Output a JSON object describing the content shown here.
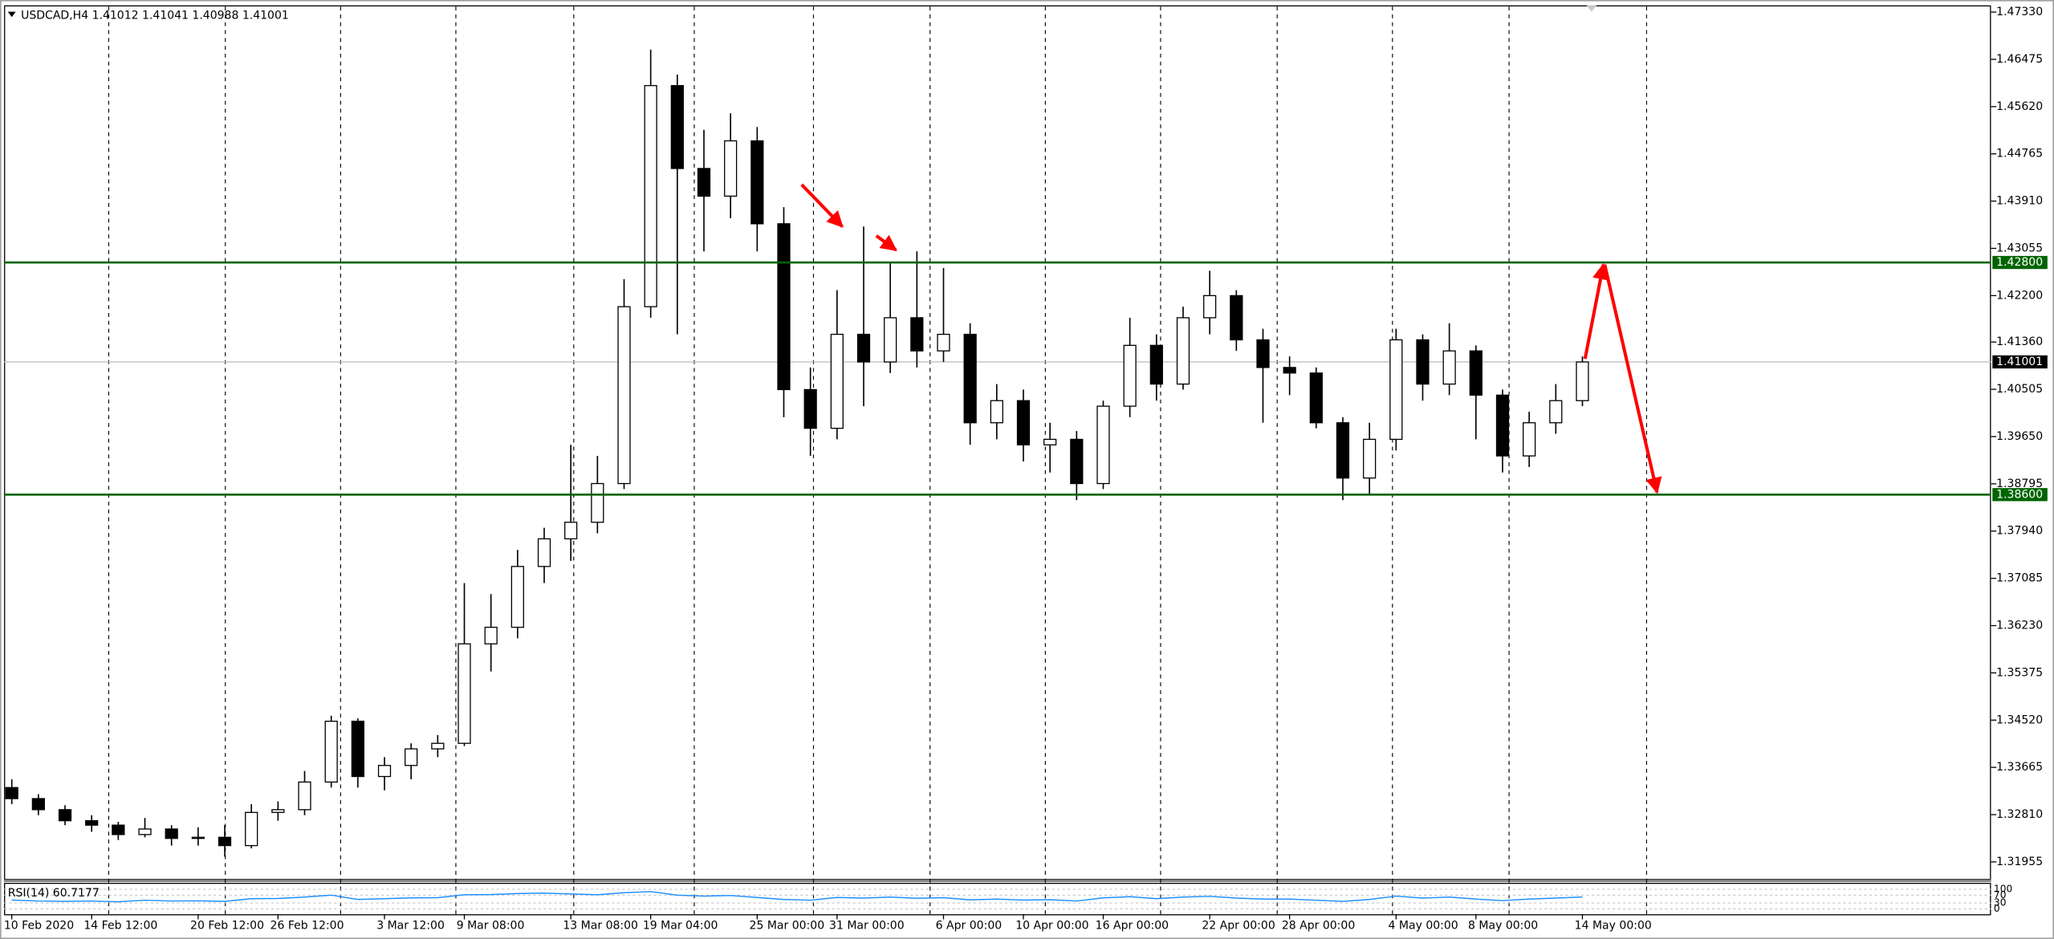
{
  "chart_data": [
    {
      "type": "candlestick",
      "title": "USDCAD,H4  1.41012 1.41041 1.40988 1.41001",
      "categories": [
        "10 Feb 2020",
        null,
        null,
        "14 Feb 12:00",
        null,
        null,
        null,
        "20 Feb 12:00",
        null,
        null,
        "26 Feb 12:00",
        null,
        null,
        null,
        "3 Mar 12:00",
        null,
        null,
        "9 Mar 08:00",
        null,
        null,
        null,
        "13 Mar 08:00",
        null,
        null,
        "19 Mar 04:00",
        null,
        null,
        null,
        "25 Mar 00:00",
        null,
        null,
        "31 Mar 00:00",
        null,
        null,
        null,
        "6 Apr 00:00",
        null,
        null,
        "10 Apr 00:00",
        null,
        null,
        "16 Apr 00:00",
        null,
        null,
        null,
        "22 Apr 00:00",
        null,
        null,
        "28 Apr 00:00",
        null,
        null,
        null,
        "4 May 00:00",
        null,
        null,
        "8 May 00:00",
        null,
        null,
        null,
        "14 May 00:00"
      ],
      "open": [
        1.333,
        1.331,
        1.329,
        1.327,
        1.3262,
        1.3245,
        1.3255,
        1.3238,
        1.324,
        1.3225,
        1.3285,
        1.329,
        1.334,
        1.345,
        1.335,
        1.337,
        1.34,
        1.341,
        1.359,
        1.362,
        1.373,
        1.378,
        1.381,
        1.388,
        1.42,
        1.46,
        1.445,
        1.44,
        1.45,
        1.435,
        1.405,
        1.398,
        1.415,
        1.41,
        1.418,
        1.412,
        1.415,
        1.399,
        1.403,
        1.395,
        1.396,
        1.388,
        1.402,
        1.413,
        1.406,
        1.418,
        1.422,
        1.414,
        1.409,
        1.408,
        1.399,
        1.389,
        1.396,
        1.414,
        1.406,
        1.412,
        1.404,
        1.393,
        1.399,
        1.403
      ],
      "high": [
        1.3345,
        1.3318,
        1.3298,
        1.328,
        1.3268,
        1.3275,
        1.3262,
        1.3258,
        1.3262,
        1.33,
        1.3305,
        1.336,
        1.346,
        1.3455,
        1.3385,
        1.341,
        1.3425,
        1.37,
        1.368,
        1.376,
        1.38,
        1.395,
        1.393,
        1.425,
        1.4665,
        1.462,
        1.452,
        1.455,
        1.4525,
        1.438,
        1.409,
        1.423,
        1.4345,
        1.428,
        1.43,
        1.427,
        1.417,
        1.406,
        1.405,
        1.399,
        1.3975,
        1.403,
        1.418,
        1.415,
        1.42,
        1.4265,
        1.423,
        1.416,
        1.411,
        1.409,
        1.4,
        1.399,
        1.416,
        1.415,
        1.417,
        1.413,
        1.405,
        1.401,
        1.406,
        1.411
      ],
      "low": [
        1.33,
        1.328,
        1.3262,
        1.325,
        1.3235,
        1.324,
        1.3225,
        1.3225,
        1.3205,
        1.322,
        1.327,
        1.328,
        1.333,
        1.333,
        1.3325,
        1.3345,
        1.3385,
        1.3405,
        1.354,
        1.36,
        1.37,
        1.374,
        1.379,
        1.387,
        1.418,
        1.415,
        1.43,
        1.436,
        1.43,
        1.4,
        1.393,
        1.396,
        1.402,
        1.408,
        1.409,
        1.41,
        1.395,
        1.396,
        1.392,
        1.39,
        1.385,
        1.387,
        1.4,
        1.403,
        1.405,
        1.415,
        1.412,
        1.399,
        1.404,
        1.398,
        1.385,
        1.386,
        1.394,
        1.403,
        1.404,
        1.396,
        1.39,
        1.391,
        1.397,
        1.402
      ],
      "close": [
        1.331,
        1.329,
        1.327,
        1.3262,
        1.3245,
        1.3255,
        1.3238,
        1.324,
        1.3225,
        1.3285,
        1.329,
        1.334,
        1.345,
        1.335,
        1.337,
        1.34,
        1.341,
        1.359,
        1.362,
        1.373,
        1.378,
        1.381,
        1.388,
        1.42,
        1.46,
        1.445,
        1.44,
        1.45,
        1.435,
        1.405,
        1.398,
        1.415,
        1.41,
        1.418,
        1.412,
        1.415,
        1.399,
        1.403,
        1.395,
        1.396,
        1.388,
        1.402,
        1.413,
        1.406,
        1.418,
        1.422,
        1.414,
        1.409,
        1.408,
        1.399,
        1.389,
        1.396,
        1.414,
        1.406,
        1.412,
        1.404,
        1.393,
        1.399,
        1.403,
        1.41
      ],
      "up_color": "#ffffff",
      "down_color": "#000000",
      "ylim": [
        1.3165,
        1.4743
      ],
      "yticks": [
        {
          "value": 1.4733,
          "label": "1.47330"
        },
        1.46475,
        {
          "value": 1.4562,
          "label": "1.45620"
        },
        1.44765,
        {
          "value": 1.4391,
          "label": "1.43910"
        },
        1.43055,
        {
          "value": 1.422,
          "label": "1.42200"
        },
        {
          "value": 1.4136,
          "label": "1.41360"
        },
        1.40505,
        {
          "value": 1.3965,
          "label": "1.39650"
        },
        1.38795,
        {
          "value": 1.3794,
          "label": "1.37940"
        },
        1.37085,
        {
          "value": 1.3623,
          "label": "1.36230"
        },
        1.35375,
        {
          "value": 1.3452,
          "label": "1.34520"
        },
        1.33665,
        {
          "value": 1.3281,
          "label": "1.32810"
        },
        1.31955
      ],
      "levels": [
        {
          "value": 1.428,
          "label": "1.42800"
        },
        {
          "value": 1.386,
          "label": "1.38600"
        }
      ],
      "level_color": "#006400",
      "price_line": 1.41001
    },
    {
      "type": "line",
      "title": "RSI(14) 60.7177",
      "color": "#1e90ff",
      "values": [
        45,
        40,
        38,
        40,
        36,
        44,
        40,
        41,
        38,
        52,
        53,
        60,
        70,
        48,
        52,
        56,
        57,
        72,
        73,
        78,
        80,
        76,
        72,
        82,
        88,
        70,
        65,
        68,
        58,
        48,
        44,
        58,
        55,
        60,
        54,
        57,
        46,
        50,
        45,
        47,
        40,
        56,
        62,
        52,
        60,
        64,
        55,
        50,
        50,
        44,
        38,
        48,
        65,
        55,
        60,
        50,
        42,
        50,
        55,
        60.7177
      ],
      "ylim": [
        0,
        100
      ],
      "yticks": [
        100,
        70,
        30,
        0
      ]
    }
  ]
}
